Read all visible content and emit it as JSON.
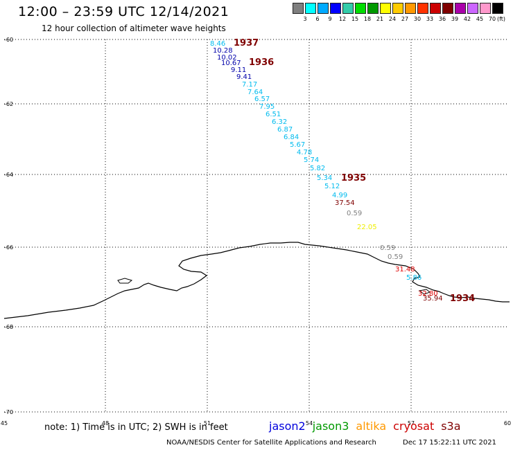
{
  "header": {
    "title": "12:00 – 23:59 UTC 12/14/2021",
    "subtitle": "12 hour collection of altimeter wave heights"
  },
  "colorbar": {
    "colors": [
      "#7f7f7f",
      "#00ffff",
      "#00aaff",
      "#0000ff",
      "#33ccaa",
      "#00dd00",
      "#009900",
      "#ffff00",
      "#ffcc00",
      "#ff9900",
      "#ff3300",
      "#cc0000",
      "#7f0000",
      "#aa00aa",
      "#cc66ff",
      "#ff99cc",
      "#000000"
    ],
    "labels": [
      "3",
      "6",
      "9",
      "12",
      "15",
      "18",
      "21",
      "24",
      "27",
      "30",
      "33",
      "36",
      "39",
      "42",
      "45",
      "70"
    ],
    "unit": "(ft)"
  },
  "axes": {
    "lon_ticks": [
      "45",
      "48",
      "51",
      "54",
      "57",
      "60"
    ],
    "lat_ticks": [
      "-60",
      "-62",
      "-64",
      "-66",
      "-68",
      "-70"
    ]
  },
  "track_points": [
    {
      "value": "8.46",
      "color": "#00bbee"
    },
    {
      "value": "10.28",
      "color": "#0000aa"
    },
    {
      "value": "10.02",
      "color": "#0000aa"
    },
    {
      "value": "10.67",
      "color": "#0000aa"
    },
    {
      "value": "9.11",
      "color": "#0000aa"
    },
    {
      "value": "9.41",
      "color": "#0000aa"
    },
    {
      "value": "7.17",
      "color": "#00bbee"
    },
    {
      "value": "7.64",
      "color": "#00bbee"
    },
    {
      "value": "6.57",
      "color": "#00bbee"
    },
    {
      "value": "7.95",
      "color": "#00bbee"
    },
    {
      "value": "6.51",
      "color": "#00bbee"
    },
    {
      "value": "6.32",
      "color": "#00bbee"
    },
    {
      "value": "6.87",
      "color": "#00bbee"
    },
    {
      "value": "6.84",
      "color": "#00bbee"
    },
    {
      "value": "5.67",
      "color": "#00bbee"
    },
    {
      "value": "4.78",
      "color": "#00bbee"
    },
    {
      "value": "5.74",
      "color": "#00bbee"
    },
    {
      "value": "5.82",
      "color": "#00bbee"
    },
    {
      "value": "5.34",
      "color": "#00bbee"
    },
    {
      "value": "5.12",
      "color": "#00bbee"
    },
    {
      "value": "4.99",
      "color": "#00bbee"
    },
    {
      "value": "37.54",
      "color": "#7f0000"
    },
    {
      "value": "0.59",
      "color": "#7f7f7f"
    },
    {
      "value": "22.05",
      "color": "#eeee00"
    },
    {
      "value": "0.59",
      "color": "#7f7f7f"
    },
    {
      "value": "0.59",
      "color": "#7f7f7f"
    },
    {
      "value": "31.48",
      "color": "#dd0000"
    },
    {
      "value": "5.86",
      "color": "#00bbee"
    },
    {
      "value": "32.80",
      "color": "#dd0000"
    },
    {
      "value": "35.94",
      "color": "#7f0000"
    }
  ],
  "time_labels": [
    {
      "text": "1937",
      "color": "#7f0000"
    },
    {
      "text": "1936",
      "color": "#7f0000"
    },
    {
      "text": "1935",
      "color": "#7f0000"
    },
    {
      "text": "1934",
      "color": "#7f0000"
    }
  ],
  "footer": {
    "note": "note:  1) Time is in UTC;  2) SWH is in feet",
    "satellites": [
      {
        "name": "jason2",
        "color": "#0000dd"
      },
      {
        "name": "jason3",
        "color": "#009900"
      },
      {
        "name": "altika",
        "color": "#ff9900"
      },
      {
        "name": "cryosat",
        "color": "#cc0000"
      },
      {
        "name": "s3a",
        "color": "#7f0000"
      }
    ],
    "credit": "NOAA/NESDIS Center for Satellite Applications and Research",
    "timestamp": "Dec 17 15:22:11 UTC 2021"
  }
}
